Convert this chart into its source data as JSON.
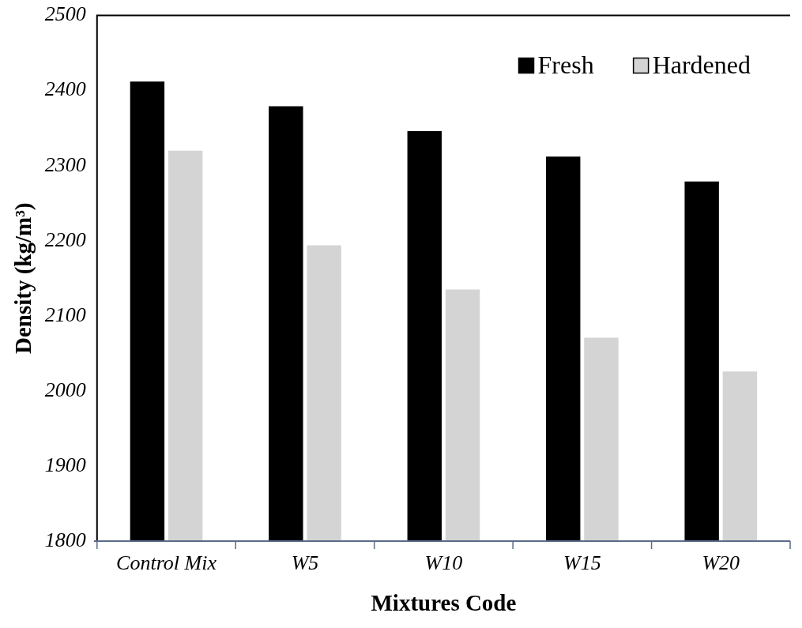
{
  "chart_data": {
    "type": "bar",
    "xlabel": "Mixtures Code",
    "ylabel": "Density (kg/m³)",
    "categories": [
      "Control Mix",
      "W5",
      "W10",
      "W15",
      "W20"
    ],
    "series": [
      {
        "name": "Fresh",
        "color": "#000000",
        "values": [
          2412,
          2379,
          2346,
          2312,
          2279
        ]
      },
      {
        "name": "Hardened",
        "color": "#d4d4d4",
        "values": [
          2320,
          2194,
          2135,
          2071,
          2026
        ]
      }
    ],
    "ylim": [
      1800,
      2500
    ],
    "yticks": [
      1800,
      1900,
      2000,
      2100,
      2200,
      2300,
      2400,
      2500
    ],
    "grid": false,
    "legend": "top right"
  }
}
